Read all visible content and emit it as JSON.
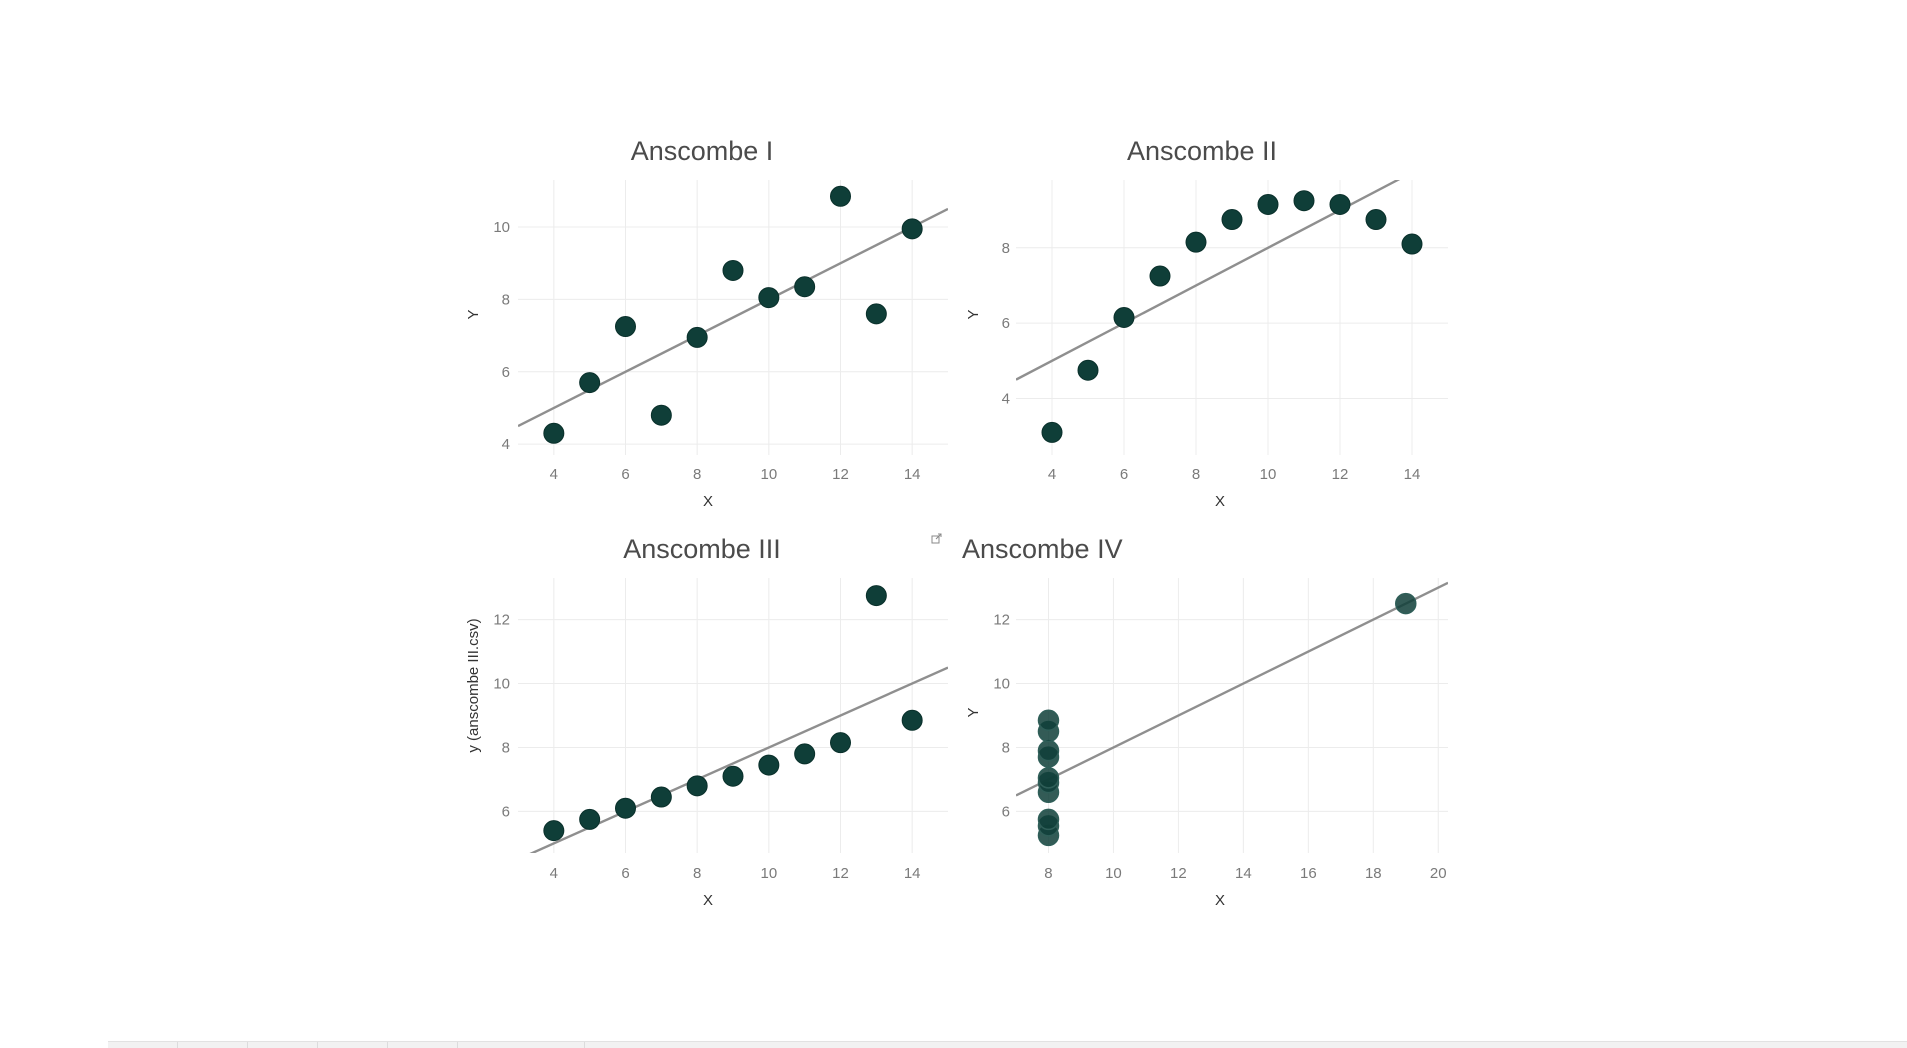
{
  "chart_data": [
    {
      "type": "scatter",
      "title": "Anscombe I",
      "xlabel": "X",
      "ylabel": "Y",
      "xlim": [
        3,
        15
      ],
      "ylim": [
        3.7,
        11.3
      ],
      "xticks": [
        4,
        6,
        8,
        10,
        12,
        14
      ],
      "yticks": [
        4,
        6,
        8,
        10
      ],
      "points": [
        [
          4,
          4.3
        ],
        [
          5,
          5.7
        ],
        [
          6,
          7.25
        ],
        [
          7,
          4.8
        ],
        [
          8,
          6.95
        ],
        [
          9,
          8.8
        ],
        [
          10,
          8.05
        ],
        [
          11,
          8.35
        ],
        [
          12,
          10.85
        ],
        [
          13,
          7.6
        ],
        [
          14,
          9.95
        ]
      ],
      "trend_line": {
        "slope": 0.5,
        "intercept": 3.0
      },
      "grid": true
    },
    {
      "type": "scatter",
      "title": "Anscombe II",
      "xlabel": "X",
      "ylabel": "Y",
      "xlim": [
        3,
        15
      ],
      "ylim": [
        2.5,
        9.8
      ],
      "xticks": [
        4,
        6,
        8,
        10,
        12,
        14
      ],
      "yticks": [
        4,
        6,
        8
      ],
      "points": [
        [
          4,
          3.1
        ],
        [
          5,
          4.75
        ],
        [
          6,
          6.15
        ],
        [
          7,
          7.25
        ],
        [
          8,
          8.15
        ],
        [
          9,
          8.75
        ],
        [
          10,
          9.15
        ],
        [
          11,
          9.25
        ],
        [
          12,
          9.15
        ],
        [
          13,
          8.75
        ],
        [
          14,
          8.1
        ]
      ],
      "trend_line": {
        "slope": 0.5,
        "intercept": 3.0
      },
      "grid": true
    },
    {
      "type": "scatter",
      "title": "Anscombe III",
      "xlabel": "X",
      "ylabel": "y (anscombe III.csv)",
      "xlim": [
        3,
        15
      ],
      "ylim": [
        4.7,
        13.3
      ],
      "xticks": [
        4,
        6,
        8,
        10,
        12,
        14
      ],
      "yticks": [
        6,
        8,
        10,
        12
      ],
      "points": [
        [
          4,
          5.4
        ],
        [
          5,
          5.75
        ],
        [
          6,
          6.1
        ],
        [
          7,
          6.45
        ],
        [
          8,
          6.8
        ],
        [
          9,
          7.1
        ],
        [
          10,
          7.45
        ],
        [
          11,
          7.8
        ],
        [
          12,
          8.15
        ],
        [
          13,
          12.75
        ],
        [
          14,
          8.85
        ]
      ],
      "trend_line": {
        "slope": 0.5,
        "intercept": 3.0
      },
      "grid": true
    },
    {
      "type": "scatter",
      "title": "Anscombe IV",
      "xlabel": "X",
      "ylabel": "Y",
      "xlim": [
        7,
        20.3
      ],
      "ylim": [
        4.7,
        13.3
      ],
      "xticks": [
        8,
        10,
        12,
        14,
        16,
        18,
        20
      ],
      "yticks": [
        6,
        8,
        10,
        12
      ],
      "points": [
        [
          8,
          5.25
        ],
        [
          8,
          5.55
        ],
        [
          8,
          5.75
        ],
        [
          8,
          6.6
        ],
        [
          8,
          6.9
        ],
        [
          8,
          7.05
        ],
        [
          8,
          7.7
        ],
        [
          8,
          7.9
        ],
        [
          8,
          8.5
        ],
        [
          8,
          8.85
        ],
        [
          19,
          12.5
        ]
      ],
      "trend_line": {
        "slope": 0.5,
        "intercept": 3.0
      },
      "grid": true
    }
  ],
  "icons": {
    "popout": "external-link-icon"
  },
  "colors": {
    "point": "#0f3e38",
    "trend_line": "#8f8f8f",
    "grid": "#ececec",
    "title": "#4b4b4b"
  }
}
